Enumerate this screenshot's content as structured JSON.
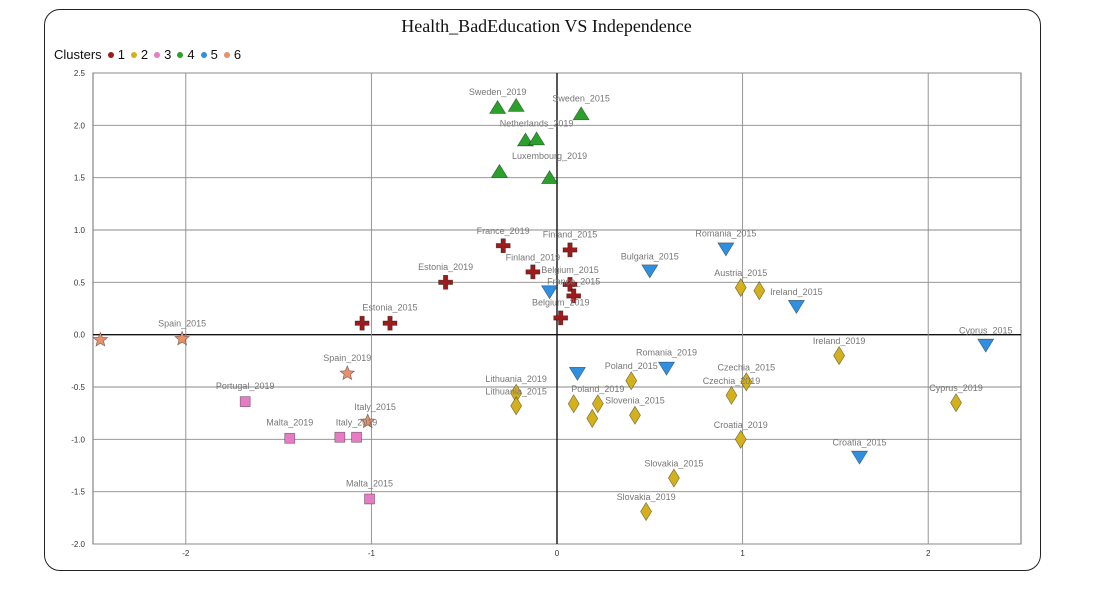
{
  "chart_data": {
    "type": "scatter",
    "title": "Health_BadEducation VS Independence",
    "xlabel": "",
    "ylabel": "",
    "xlim": [
      -2.5,
      2.5
    ],
    "ylim": [
      -2.0,
      2.5
    ],
    "x_ticks": [
      -2,
      -1,
      0,
      1,
      2
    ],
    "y_ticks": [
      2.5,
      2.0,
      1.5,
      1.0,
      0.5,
      0.0,
      -0.5,
      -1.0,
      -1.5,
      -2.0
    ],
    "x_tick_labels": [
      "-2",
      "-1",
      "0",
      "1",
      "2"
    ],
    "y_tick_labels": [
      "2.5",
      "2.0",
      "1.5",
      "1.0",
      "0.5",
      "0.0",
      "-0.5",
      "-1.0",
      "-1.5",
      "-2.0"
    ],
    "grid": true,
    "legend": {
      "title": "Clusters",
      "placement": "top-left",
      "items": [
        {
          "label": "1",
          "color": "#9b1c1c"
        },
        {
          "label": "2",
          "color": "#d4b01c"
        },
        {
          "label": "3",
          "color": "#e87cc4"
        },
        {
          "label": "4",
          "color": "#2ca02c"
        },
        {
          "label": "5",
          "color": "#2f8fe0"
        },
        {
          "label": "6",
          "color": "#e8906a"
        }
      ]
    },
    "series": [
      {
        "name": "1",
        "color": "#9b1c1c",
        "marker": "cross",
        "points": [
          {
            "x": -0.29,
            "y": 0.85,
            "label": "France_2019",
            "lx": -0.29,
            "ly": 0.96
          },
          {
            "x": 0.07,
            "y": 0.81,
            "label": "Finland_2015",
            "lx": 0.07,
            "ly": 0.93
          },
          {
            "x": -0.13,
            "y": 0.6,
            "label": "Finland_2019",
            "lx": -0.13,
            "ly": 0.71
          },
          {
            "x": 0.07,
            "y": 0.48,
            "label": "Belgium_2015",
            "lx": 0.07,
            "ly": 0.59
          },
          {
            "x": 0.09,
            "y": 0.37,
            "label": "France_2015",
            "lx": 0.09,
            "ly": 0.48
          },
          {
            "x": 0.02,
            "y": 0.16,
            "label": "Belgium_2019",
            "lx": 0.02,
            "ly": 0.28
          },
          {
            "x": -0.6,
            "y": 0.5,
            "label": "Estonia_2019",
            "lx": -0.6,
            "ly": 0.62
          },
          {
            "x": -1.05,
            "y": 0.11,
            "label": "",
            "lx": 0,
            "ly": 0
          },
          {
            "x": -0.9,
            "y": 0.11,
            "label": "Estonia_2015",
            "lx": -0.9,
            "ly": 0.23
          }
        ]
      },
      {
        "name": "2",
        "color": "#d4b01c",
        "marker": "diamond",
        "points": [
          {
            "x": 0.99,
            "y": 0.45,
            "label": "Austria_2015",
            "lx": 0.99,
            "ly": 0.56
          },
          {
            "x": 1.09,
            "y": 0.42,
            "label": "",
            "lx": 0,
            "ly": 0
          },
          {
            "x": 1.52,
            "y": -0.2,
            "label": "Ireland_2019",
            "lx": 1.52,
            "ly": -0.09
          },
          {
            "x": 2.15,
            "y": -0.65,
            "label": "Cyprus_2019",
            "lx": 2.15,
            "ly": -0.54
          },
          {
            "x": 0.4,
            "y": -0.44,
            "label": "Poland_2015",
            "lx": 0.4,
            "ly": -0.33
          },
          {
            "x": 1.02,
            "y": -0.45,
            "label": "Czechia_2015",
            "lx": 1.02,
            "ly": -0.34
          },
          {
            "x": 0.94,
            "y": -0.58,
            "label": "Czechia_2019",
            "lx": 0.94,
            "ly": -0.47
          },
          {
            "x": -0.22,
            "y": -0.56,
            "label": "Lithuania_2019",
            "lx": -0.22,
            "ly": -0.45
          },
          {
            "x": -0.22,
            "y": -0.68,
            "label": "Lithuania_2015",
            "lx": -0.22,
            "ly": -0.57
          },
          {
            "x": 0.09,
            "y": -0.66,
            "label": "Poland_2019",
            "lx": 0.22,
            "ly": -0.55
          },
          {
            "x": 0.22,
            "y": -0.66,
            "label": "",
            "lx": 0,
            "ly": 0
          },
          {
            "x": 0.19,
            "y": -0.8,
            "label": "",
            "lx": 0,
            "ly": 0
          },
          {
            "x": 0.42,
            "y": -0.77,
            "label": "Slovenia_2015",
            "lx": 0.42,
            "ly": -0.66
          },
          {
            "x": 0.99,
            "y": -1.0,
            "label": "Croatia_2019",
            "lx": 0.99,
            "ly": -0.89
          },
          {
            "x": 0.63,
            "y": -1.37,
            "label": "Slovakia_2015",
            "lx": 0.63,
            "ly": -1.26
          },
          {
            "x": 0.48,
            "y": -1.69,
            "label": "Slovakia_2019",
            "lx": 0.48,
            "ly": -1.58
          }
        ]
      },
      {
        "name": "3",
        "color": "#e87cc4",
        "marker": "square",
        "points": [
          {
            "x": -1.68,
            "y": -0.64,
            "label": "Portugal_2019",
            "lx": -1.68,
            "ly": -0.52
          },
          {
            "x": -1.44,
            "y": -0.99,
            "label": "Malta_2019",
            "lx": -1.44,
            "ly": -0.87
          },
          {
            "x": -1.17,
            "y": -0.98,
            "label": "",
            "lx": 0,
            "ly": 0
          },
          {
            "x": -1.08,
            "y": -0.98,
            "label": "Italy_2019",
            "lx": -1.08,
            "ly": -0.87
          },
          {
            "x": -1.01,
            "y": -1.57,
            "label": "Malta_2015",
            "lx": -1.01,
            "ly": -1.45
          }
        ]
      },
      {
        "name": "4",
        "color": "#2ca02c",
        "marker": "triangle-up",
        "points": [
          {
            "x": -0.32,
            "y": 2.17,
            "label": "",
            "lx": 0,
            "ly": 0
          },
          {
            "x": -0.22,
            "y": 2.19,
            "label": "Sweden_2019",
            "lx": -0.32,
            "ly": 2.29
          },
          {
            "x": 0.13,
            "y": 2.11,
            "label": "Sweden_2015",
            "lx": 0.13,
            "ly": 2.23
          },
          {
            "x": -0.17,
            "y": 1.86,
            "label": "Netherlands_2019",
            "lx": -0.11,
            "ly": 1.99
          },
          {
            "x": -0.11,
            "y": 1.87,
            "label": "",
            "lx": 0,
            "ly": 0
          },
          {
            "x": -0.31,
            "y": 1.56,
            "label": "",
            "lx": 0,
            "ly": 0
          },
          {
            "x": -0.04,
            "y": 1.5,
            "label": "Luxembourg_2019",
            "lx": -0.04,
            "ly": 1.68
          }
        ]
      },
      {
        "name": "5",
        "color": "#2f8fe0",
        "marker": "triangle-down",
        "points": [
          {
            "x": 0.91,
            "y": 0.82,
            "label": "Romania_2015",
            "lx": 0.91,
            "ly": 0.94
          },
          {
            "x": 0.5,
            "y": 0.61,
            "label": "Bulgaria_2015",
            "lx": 0.5,
            "ly": 0.72
          },
          {
            "x": -0.04,
            "y": 0.41,
            "label": "",
            "lx": 0,
            "ly": 0
          },
          {
            "x": 1.29,
            "y": 0.27,
            "label": "Ireland_2015",
            "lx": 1.29,
            "ly": 0.38
          },
          {
            "x": 2.31,
            "y": -0.1,
            "label": "Cyprus_2015",
            "lx": 2.31,
            "ly": 0.01
          },
          {
            "x": 0.11,
            "y": -0.37,
            "label": "",
            "lx": 0,
            "ly": 0
          },
          {
            "x": 0.59,
            "y": -0.32,
            "label": "Romania_2019",
            "lx": 0.59,
            "ly": -0.2
          },
          {
            "x": 1.63,
            "y": -1.17,
            "label": "Croatia_2015",
            "lx": 1.63,
            "ly": -1.06
          }
        ]
      },
      {
        "name": "6",
        "color": "#e8906a",
        "marker": "star",
        "points": [
          {
            "x": -2.02,
            "y": -0.04,
            "label": "Spain_2015",
            "lx": -2.02,
            "ly": 0.08
          },
          {
            "x": -2.46,
            "y": -0.05,
            "label": "",
            "lx": 0,
            "ly": 0
          },
          {
            "x": -1.13,
            "y": -0.37,
            "label": "Spain_2019",
            "lx": -1.13,
            "ly": -0.25
          },
          {
            "x": -1.02,
            "y": -0.83,
            "label": "Italy_2015",
            "lx": -0.98,
            "ly": -0.72
          }
        ]
      }
    ]
  }
}
